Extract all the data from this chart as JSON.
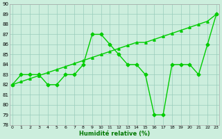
{
  "x": [
    0,
    1,
    2,
    3,
    4,
    5,
    6,
    7,
    8,
    9,
    10,
    11,
    12,
    13,
    14,
    15,
    16,
    17,
    18,
    19,
    20,
    21,
    22,
    23
  ],
  "y_main": [
    82,
    83,
    83,
    83,
    82,
    82,
    83,
    83,
    84,
    87,
    87,
    86,
    85,
    84,
    84,
    83,
    79,
    79,
    84,
    84,
    84,
    83,
    86,
    89
  ],
  "y_trend": [
    82,
    82.3,
    82.6,
    82.9,
    83.2,
    83.5,
    83.8,
    84.1,
    84.4,
    84.7,
    85.0,
    85.3,
    85.6,
    85.9,
    86.2,
    86.2,
    86.5,
    86.8,
    87.1,
    87.4,
    87.7,
    88.0,
    88.3,
    89.0
  ],
  "line_color": "#00cc00",
  "bg_color": "#cceedd",
  "grid_color": "#99ccbb",
  "xlabel": "Humidité relative (%)",
  "xlabel_color": "#007700",
  "ylim": [
    78,
    90
  ],
  "xlim": [
    -0.3,
    23.3
  ],
  "yticks": [
    78,
    79,
    80,
    81,
    82,
    83,
    84,
    85,
    86,
    87,
    88,
    89,
    90
  ],
  "xticks": [
    0,
    1,
    2,
    3,
    4,
    5,
    6,
    7,
    8,
    9,
    10,
    11,
    12,
    13,
    14,
    15,
    16,
    17,
    18,
    19,
    20,
    21,
    22,
    23
  ],
  "markersize": 2.5,
  "linewidth": 1.0
}
